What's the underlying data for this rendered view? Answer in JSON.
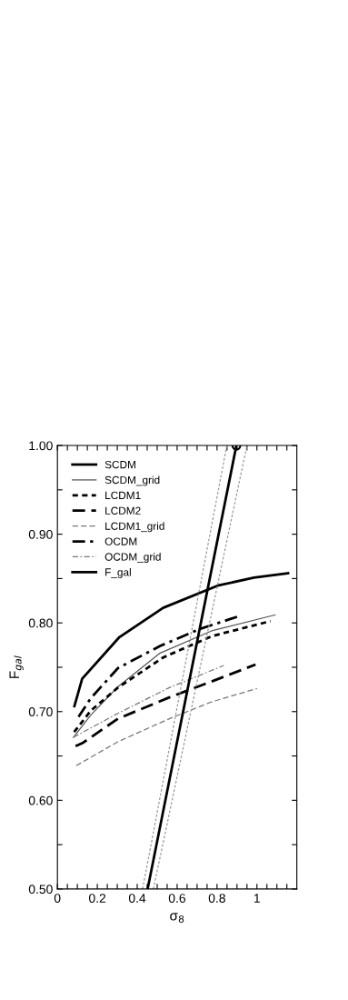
{
  "chart_data": {
    "type": "line",
    "xlabel": "σ$_{8}$",
    "ylabel": "F$_{gal}$",
    "xlim": [
      0,
      1.2
    ],
    "ylim": [
      0.5,
      1.0
    ],
    "xticks": [
      0,
      {
        "value": 0.05,
        "label": null
      },
      {
        "value": 0.1,
        "label": null
      },
      {
        "value": 0.15,
        "label": null
      },
      0.2,
      {
        "value": 0.25,
        "label": null
      },
      {
        "value": 0.3,
        "label": null
      },
      {
        "value": 0.35,
        "label": null
      },
      0.4,
      {
        "value": 0.45,
        "label": null
      },
      {
        "value": 0.5,
        "label": null
      },
      {
        "value": 0.55,
        "label": null
      },
      0.6,
      {
        "value": 0.65,
        "label": null
      },
      {
        "value": 0.7,
        "label": null
      },
      {
        "value": 0.75,
        "label": null
      },
      0.8,
      {
        "value": 0.85,
        "label": null
      },
      {
        "value": 0.9,
        "label": null
      },
      {
        "value": 0.95,
        "label": null
      },
      1,
      {
        "value": 1.05,
        "label": null
      },
      {
        "value": 1.1,
        "label": null
      },
      {
        "value": 1.15,
        "label": null
      }
    ],
    "yticks": [
      {
        "value": 0.5,
        "label": "0.50"
      },
      {
        "value": 0.55,
        "label": null
      },
      {
        "value": 0.6,
        "label": "0.60"
      },
      {
        "value": 0.65,
        "label": null
      },
      {
        "value": 0.7,
        "label": "0.70"
      },
      {
        "value": 0.75,
        "label": null
      },
      {
        "value": 0.8,
        "label": "0.80"
      },
      {
        "value": 0.85,
        "label": null
      },
      {
        "value": 0.9,
        "label": "0.90"
      },
      {
        "value": 0.95,
        "label": null
      },
      {
        "value": 1.0,
        "label": "1.00"
      }
    ],
    "grid": false,
    "legend": "top left",
    "series": [
      {
        "name": "SCDM",
        "color": "#000000",
        "line_style": "solid",
        "x": [
          0.085,
          0.124,
          0.311,
          0.53,
          0.803,
          0.985,
          1.156
        ],
        "values": [
          0.706,
          0.737,
          0.784,
          0.817,
          0.842,
          0.851,
          0.856
        ]
      },
      {
        "name": "SCDM_grid",
        "color": "#555555",
        "line_style": "solid",
        "x": [
          0.08,
          0.167,
          0.303,
          0.515,
          0.773,
          1.091
        ],
        "values": [
          0.671,
          0.696,
          0.728,
          0.766,
          0.791,
          0.809
        ]
      },
      {
        "name": "LCDM1",
        "color": "#000000",
        "line_style": "dotted",
        "x": [
          0.084,
          0.167,
          0.303,
          0.53,
          0.773,
          1.068
        ],
        "values": [
          0.677,
          0.701,
          0.727,
          0.761,
          0.785,
          0.802
        ]
      },
      {
        "name": "LCDM2",
        "color": "#000000",
        "line_style": "dashed",
        "x": [
          0.091,
          0.129,
          0.303,
          0.561,
          0.773,
          0.993
        ],
        "values": [
          0.661,
          0.665,
          0.692,
          0.716,
          0.734,
          0.753
        ]
      },
      {
        "name": "LCDM1_grid",
        "color": "#777777",
        "line_style": "dashed",
        "x": [
          0.094,
          0.303,
          0.561,
          0.773,
          1.0
        ],
        "values": [
          0.639,
          0.666,
          0.692,
          0.711,
          0.726
        ]
      },
      {
        "name": "OCDM",
        "color": "#000000",
        "line_style": "dashdot",
        "x": [
          0.106,
          0.167,
          0.303,
          0.515,
          0.712,
          0.902
        ],
        "values": [
          0.694,
          0.715,
          0.749,
          0.774,
          0.793,
          0.807
        ]
      },
      {
        "name": "OCDM_grid",
        "color": "#777777",
        "line_style": "dashdot",
        "x": [
          0.08,
          0.303,
          0.561,
          0.834
        ],
        "values": [
          0.671,
          0.698,
          0.727,
          0.752
        ]
      },
      {
        "name": "F_gal",
        "color": "#000000",
        "line_style": "solid",
        "x": [
          0.452,
          0.897
        ],
        "values": [
          0.5,
          1.0
        ]
      },
      {
        "color": "#999999",
        "line_style": "dotted",
        "x": [
          0.427,
          0.849
        ],
        "values": [
          0.5,
          1.0
        ]
      },
      {
        "color": "#999999",
        "line_style": "dotted",
        "x": [
          0.481,
          0.95
        ],
        "values": [
          0.5,
          1.0
        ]
      },
      {
        "type": "scatter",
        "marker": "circle",
        "color": "#000000",
        "x": [
          0.897
        ],
        "values": [
          1.0
        ]
      }
    ]
  }
}
